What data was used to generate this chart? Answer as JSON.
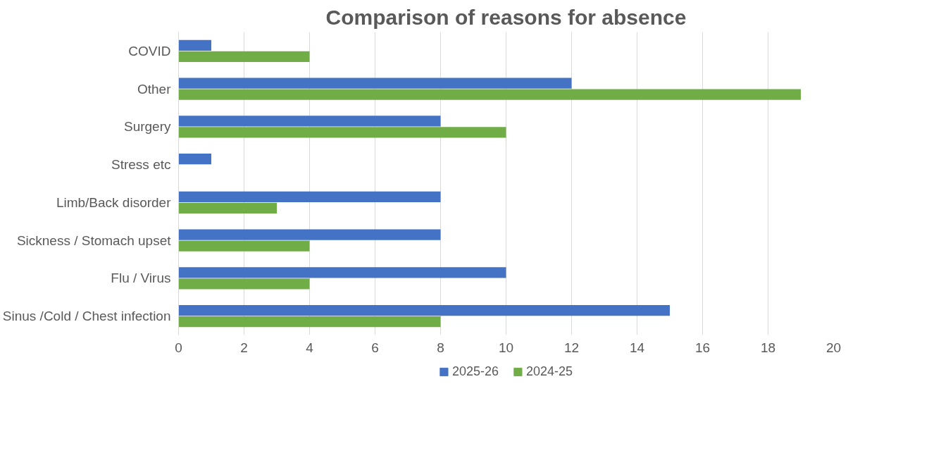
{
  "chart_data": {
    "type": "bar",
    "orientation": "horizontal",
    "title": "Comparison of reasons for absence",
    "categories": [
      "COVID",
      "Other",
      "Surgery",
      "Stress etc",
      "Limb/Back disorder",
      "Sickness / Stomach upset",
      "Flu / Virus",
      "Sinus /Cold / Chest infection"
    ],
    "series": [
      {
        "name": "2025-26",
        "color": "#4472c4",
        "values": [
          1,
          12,
          8,
          1,
          8,
          8,
          10,
          15
        ]
      },
      {
        "name": "2024-25",
        "color": "#70ad47",
        "values": [
          4,
          19,
          10,
          0,
          3,
          4,
          4,
          8
        ]
      }
    ],
    "xlim": [
      0,
      20
    ],
    "xticks": [
      0,
      2,
      4,
      6,
      8,
      10,
      12,
      14,
      16,
      18,
      20
    ],
    "grid": "x",
    "legend": "bottom"
  }
}
